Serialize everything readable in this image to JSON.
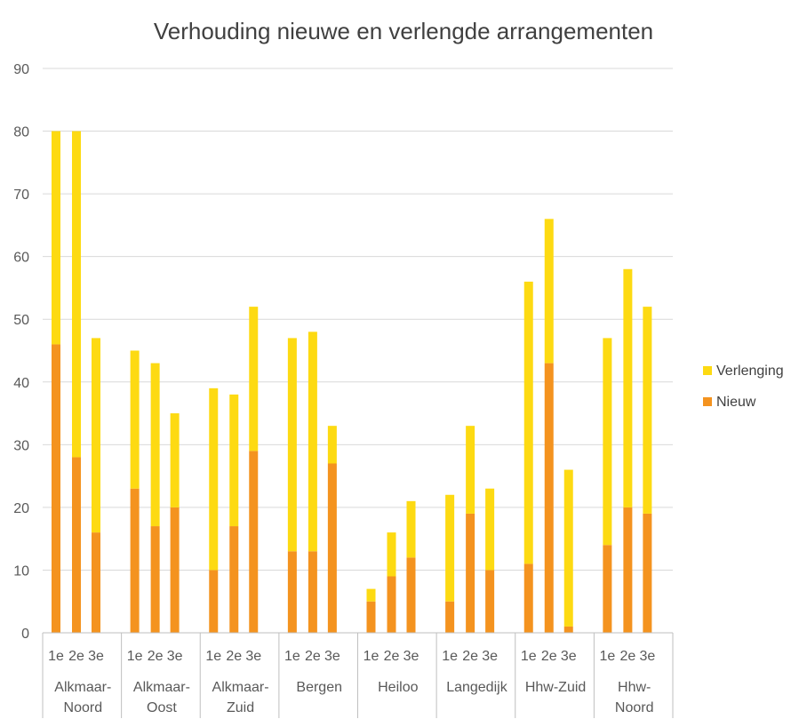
{
  "chart_data": {
    "type": "bar",
    "stacked": true,
    "title": "Verhouding nieuwe en verlengde arrangementen",
    "xlabel": "",
    "ylabel": "",
    "ylim": [
      0,
      90
    ],
    "yticks": [
      0,
      10,
      20,
      30,
      40,
      50,
      60,
      70,
      80,
      90
    ],
    "grid": true,
    "legend_position": "right",
    "groups": [
      {
        "label": "Alkmaar-Noord",
        "lines": [
          "Alkmaar-",
          "Noord"
        ]
      },
      {
        "label": "Alkmaar-Oost",
        "lines": [
          "Alkmaar-",
          "Oost"
        ]
      },
      {
        "label": "Alkmaar-Zuid",
        "lines": [
          "Alkmaar-",
          "Zuid"
        ]
      },
      {
        "label": "Bergen",
        "lines": [
          "Bergen"
        ]
      },
      {
        "label": "Heiloo",
        "lines": [
          "Heiloo"
        ]
      },
      {
        "label": "Langedijk",
        "lines": [
          "Langedijk"
        ]
      },
      {
        "label": "Hhw-Zuid",
        "lines": [
          "Hhw-Zuid"
        ]
      },
      {
        "label": "Hhw-Noord",
        "lines": [
          "Hhw-",
          "Noord"
        ]
      }
    ],
    "subcategories": [
      "1e",
      "2e",
      "3e"
    ],
    "series": [
      {
        "name": "Nieuw",
        "color": "#F4931F",
        "values": [
          46,
          28,
          16,
          23,
          17,
          20,
          10,
          17,
          29,
          13,
          13,
          27,
          5,
          9,
          12,
          5,
          19,
          10,
          11,
          43,
          1,
          14,
          20,
          19
        ]
      },
      {
        "name": "Verlenging",
        "color": "#FDDA12",
        "values": [
          34,
          52,
          31,
          22,
          26,
          15,
          29,
          21,
          23,
          34,
          35,
          6,
          2,
          7,
          9,
          17,
          14,
          13,
          45,
          23,
          25,
          33,
          38,
          33
        ]
      }
    ],
    "legend_order": [
      "Verlenging",
      "Nieuw"
    ]
  },
  "colors": {
    "grid": "#D9D9D9",
    "axis": "#BFBFBF",
    "text": "#595959"
  }
}
